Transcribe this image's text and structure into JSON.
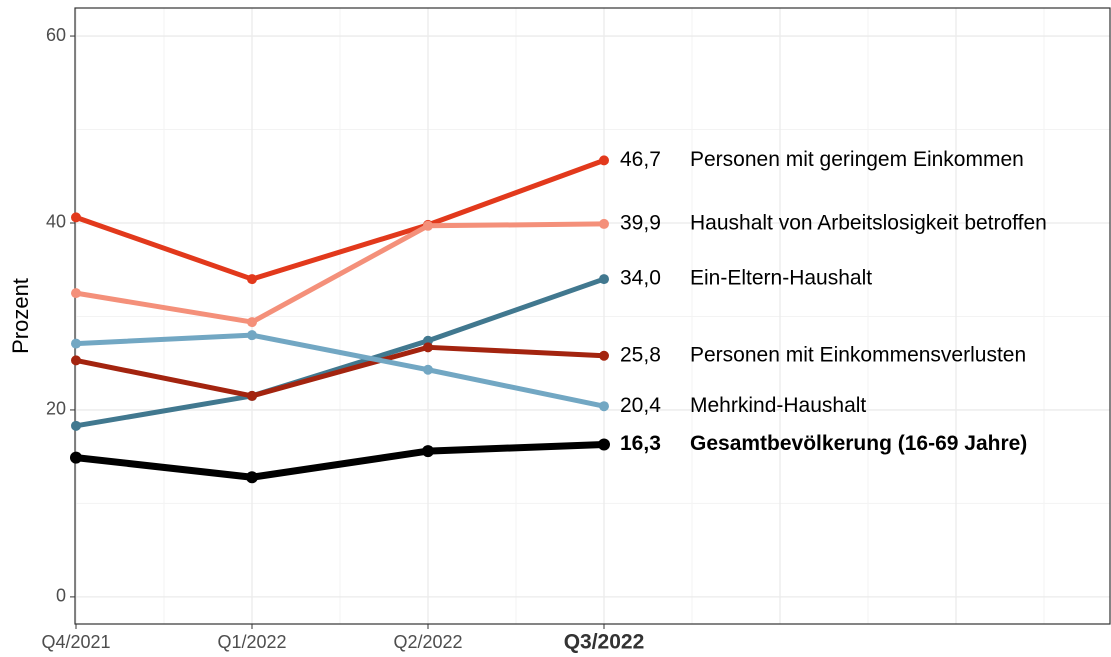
{
  "chart_data": {
    "type": "line",
    "y_label": "Prozent",
    "categories": [
      "Q4/2021",
      "Q1/2022",
      "Q2/2022",
      "Q3/2022"
    ],
    "ylim": [
      -2.9,
      63
    ],
    "yticks": [
      0,
      20,
      40,
      60
    ],
    "grid": true,
    "series": [
      {
        "name": "Personen mit geringem Einkommen",
        "color": "#e2391c",
        "values": [
          40.6,
          34.0,
          39.8,
          46.7
        ],
        "value_labels": [
          null,
          null,
          null,
          "46,7"
        ]
      },
      {
        "name": "Haushalt von Arbeitslosigkeit betroffen",
        "color": "#f4907a",
        "values": [
          32.5,
          29.4,
          39.7,
          39.9
        ],
        "value_labels": [
          null,
          null,
          null,
          "39,9"
        ]
      },
      {
        "name": "Ein-Eltern-Haushalt",
        "color": "#41788f",
        "values": [
          18.3,
          21.5,
          27.4,
          34.0
        ],
        "value_labels": [
          null,
          null,
          null,
          "34,0"
        ]
      },
      {
        "name": "Personen mit Einkommensverlusten",
        "color": "#a3240f",
        "values": [
          25.3,
          21.5,
          26.7,
          25.8
        ],
        "value_labels": [
          null,
          null,
          null,
          "25,8"
        ]
      },
      {
        "name": "Mehrkind-Haushalt",
        "color": "#72a7c3",
        "values": [
          27.1,
          28.0,
          24.3,
          20.4
        ],
        "value_labels": [
          null,
          null,
          null,
          "20,4"
        ]
      },
      {
        "name": "Gesamtbevölkerung (16-69 Jahre)",
        "color": "#000000",
        "bold": true,
        "values": [
          14.9,
          12.8,
          15.6,
          16.3
        ],
        "value_labels": [
          null,
          null,
          null,
          "16,3"
        ]
      }
    ]
  }
}
